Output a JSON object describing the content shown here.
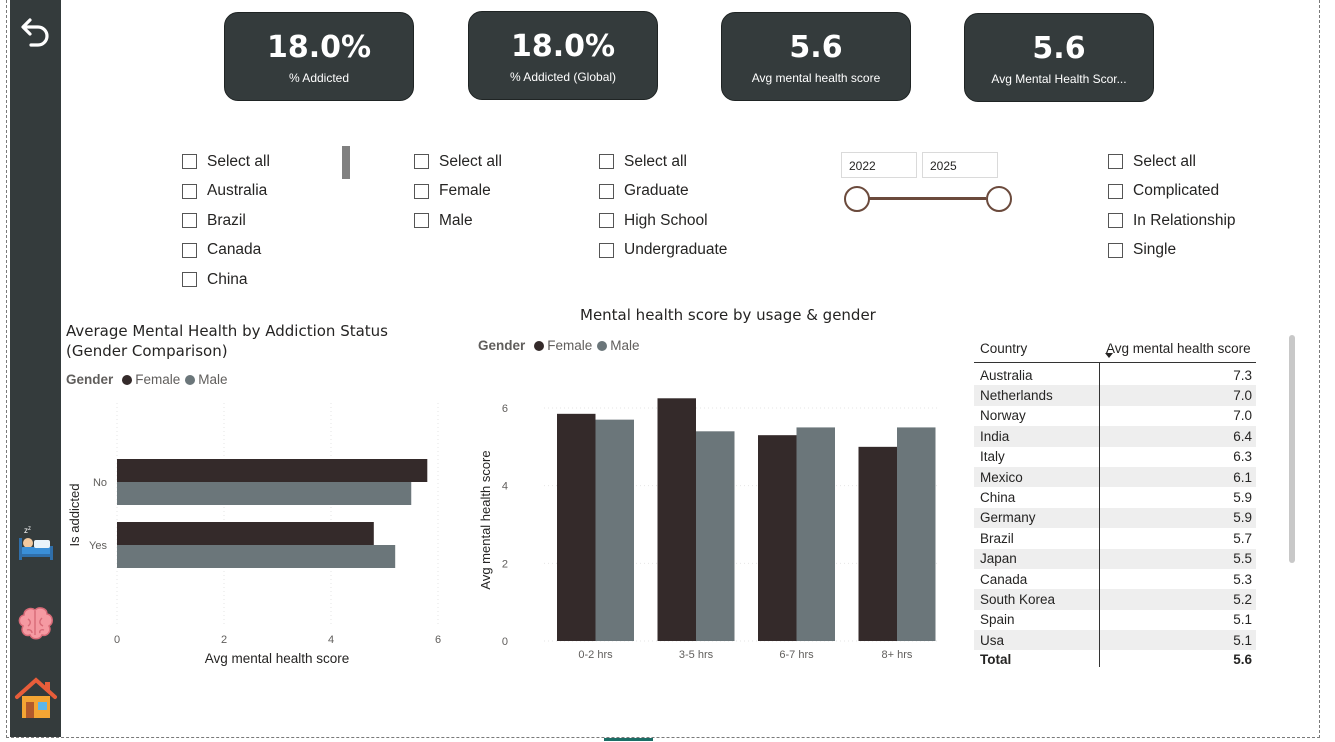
{
  "nav": {
    "back_icon": "undo-arrow-icon",
    "items": [
      {
        "name": "sleep-icon"
      },
      {
        "name": "brain-icon"
      },
      {
        "name": "home-icon"
      }
    ]
  },
  "kpis": [
    {
      "value": "18.0%",
      "label": "% Addicted"
    },
    {
      "value": "18.0%",
      "label": "% Addicted (Global)"
    },
    {
      "value": "5.6",
      "label": "Avg mental health score"
    },
    {
      "value": "5.6",
      "label": "Avg Mental Health Scor..."
    }
  ],
  "slicers": {
    "country": [
      "Select all",
      "Australia",
      "Brazil",
      "Canada",
      "China"
    ],
    "gender": [
      "Select all",
      "Female",
      "Male"
    ],
    "education": [
      "Select all",
      "Graduate",
      "High School",
      "Undergraduate"
    ],
    "relationship": [
      "Select all",
      "Complicated",
      "In Relationship",
      "Single"
    ]
  },
  "year_range": {
    "from": "2022",
    "to": "2025"
  },
  "colors": {
    "female": "#342a2a",
    "male": "#6b767a",
    "dark": "#343b3c",
    "slider": "#6b4a3c"
  },
  "chart_data": [
    {
      "type": "bar",
      "orientation": "horizontal",
      "title": "Average Mental Health by Addiction Status (Gender Comparison)",
      "title_line1": "Average Mental Health by Addiction Status",
      "title_line2": "(Gender Comparison)",
      "legend_title": "Gender",
      "xlabel": "Avg mental health score",
      "ylabel": "Is addicted",
      "categories": [
        "No",
        "Yes"
      ],
      "series": [
        {
          "name": "Female",
          "values": [
            5.8,
            4.8
          ]
        },
        {
          "name": "Male",
          "values": [
            5.5,
            5.2
          ]
        }
      ],
      "xlim": [
        0,
        6
      ],
      "ticks": [
        "0",
        "2",
        "4",
        "6"
      ],
      "tick_values": [
        0,
        2,
        4,
        6
      ],
      "grid": true
    },
    {
      "type": "bar",
      "title": "Mental health score by usage & gender",
      "legend_title": "Gender",
      "xlabel": "",
      "ylabel": "Avg mental health score",
      "categories": [
        "0-2 hrs",
        "3-5 hrs",
        "6-7 hrs",
        "8+ hrs"
      ],
      "series": [
        {
          "name": "Female",
          "values": [
            5.85,
            6.25,
            5.3,
            5.0
          ]
        },
        {
          "name": "Male",
          "values": [
            5.7,
            5.4,
            5.5,
            5.5
          ]
        }
      ],
      "ylim": [
        0,
        6.5
      ],
      "ticks": [
        "0",
        "2",
        "4",
        "6"
      ],
      "tick_values": [
        0,
        2,
        4,
        6
      ],
      "grid": true
    }
  ],
  "table": {
    "col_country": "Country",
    "col_score": "Avg mental health score",
    "rows": [
      {
        "country": "Australia",
        "score": "7.3"
      },
      {
        "country": "Netherlands",
        "score": "7.0"
      },
      {
        "country": "Norway",
        "score": "7.0"
      },
      {
        "country": "India",
        "score": "6.4"
      },
      {
        "country": "Italy",
        "score": "6.3"
      },
      {
        "country": "Mexico",
        "score": "6.1"
      },
      {
        "country": "China",
        "score": "5.9"
      },
      {
        "country": "Germany",
        "score": "5.9"
      },
      {
        "country": "Brazil",
        "score": "5.7"
      },
      {
        "country": "Japan",
        "score": "5.5"
      },
      {
        "country": "Canada",
        "score": "5.3"
      },
      {
        "country": "South Korea",
        "score": "5.2"
      },
      {
        "country": "Spain",
        "score": "5.1"
      },
      {
        "country": "Usa",
        "score": "5.1"
      }
    ],
    "total_label": "Total",
    "total_value": "5.6"
  }
}
